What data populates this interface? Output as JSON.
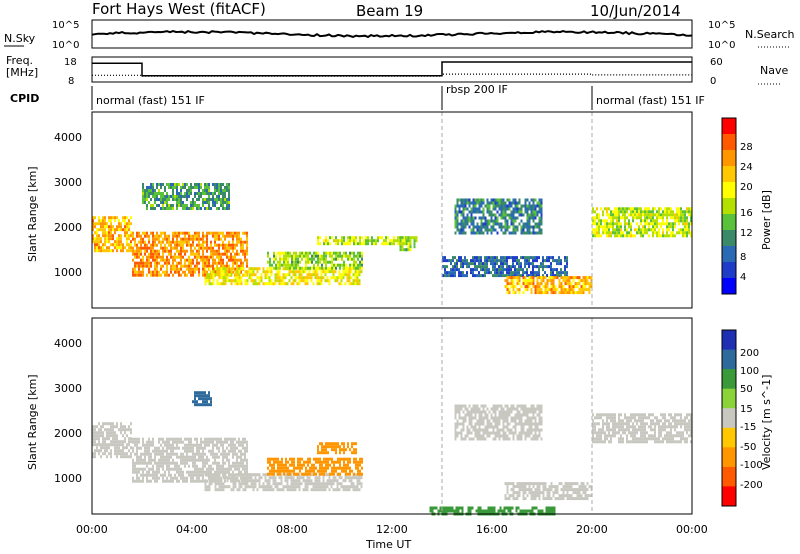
{
  "header": {
    "title": "Fort Hays West (fitACF)",
    "beam": "Beam 19",
    "date": "10/Jun/2014"
  },
  "noise_panel": {
    "left_label": "N.Sky",
    "right_label": "N.Search",
    "left_ticks": [
      "10^5",
      "10^0"
    ],
    "right_ticks": [
      "10^5",
      "10^0"
    ]
  },
  "freq_panel": {
    "left_label_1": "Freq.",
    "left_label_2": "[MHz]",
    "right_label": "Nave",
    "left_ticks": [
      "18",
      "8"
    ],
    "right_ticks": [
      "60",
      "0"
    ],
    "freq_mhz": [
      {
        "from_hour": 0.0,
        "to_hour": 2.0,
        "value": 15.5
      },
      {
        "from_hour": 2.0,
        "to_hour": 14.0,
        "value": 10.5
      },
      {
        "from_hour": 14.0,
        "to_hour": 24.0,
        "value": 16.0
      }
    ],
    "nave": [
      {
        "from_hour": 0.0,
        "to_hour": 2.0,
        "value": 16
      },
      {
        "from_hour": 2.0,
        "to_hour": 14.0,
        "value": 14
      },
      {
        "from_hour": 14.0,
        "to_hour": 20.0,
        "value": 19
      },
      {
        "from_hour": 20.0,
        "to_hour": 24.0,
        "value": 17
      }
    ]
  },
  "cpid": {
    "label": "CPID",
    "segments": [
      {
        "start_hour": 0.0,
        "end_hour": 14.0,
        "text": "normal (fast) 151 IF"
      },
      {
        "start_hour": 14.0,
        "end_hour": 20.0,
        "text": "rbsp 200 IF"
      },
      {
        "start_hour": 20.0,
        "end_hour": 24.0,
        "text": "normal (fast) 151 IF"
      }
    ]
  },
  "axes": {
    "xlabel": "Time UT",
    "x_ticks": [
      "00:00",
      "04:00",
      "08:00",
      "12:00",
      "16:00",
      "20:00",
      "00:00"
    ],
    "ylabel": "Slant Range [km]",
    "y_ticks": [
      "1000",
      "2000",
      "3000",
      "4000"
    ]
  },
  "power_colorbar": {
    "label": "Power [dB]",
    "ticks": [
      "28",
      "24",
      "20",
      "16",
      "12",
      "8",
      "4"
    ],
    "colors": [
      "#ff0000",
      "#ff5a00",
      "#ff9600",
      "#ffc800",
      "#ffff00",
      "#b4e000",
      "#59c13a",
      "#3a8a6a",
      "#2a6ab4",
      "#1f3cc8",
      "#0000ff"
    ]
  },
  "velocity_colorbar": {
    "label": "Velocity [m s^-1]",
    "ticks": [
      "200",
      "100",
      "50",
      "15",
      "-15",
      "-50",
      "-100",
      "-200"
    ],
    "colors": [
      "#1f2fb4",
      "#2e6a9c",
      "#3a9a3a",
      "#8ad43a",
      "#c8c8c0",
      "#ffc800",
      "#ff9600",
      "#ff5a00",
      "#ff0000"
    ]
  },
  "chart_data": {
    "type": "heatmap",
    "title": "Fort Hays West (fitACF)",
    "xlabel": "Time UT",
    "ylabel": "Slant Range [km]",
    "xlim_hours": [
      0,
      24
    ],
    "ylim_km": [
      180,
      4600
    ],
    "program_change_hours": [
      14.0,
      20.0
    ],
    "power_regions": [
      {
        "t0": 0.0,
        "t1": 1.6,
        "r0": 1450,
        "r1": 2250,
        "db": 22
      },
      {
        "t0": 1.6,
        "t1": 6.2,
        "r0": 900,
        "r1": 1900,
        "db": 24
      },
      {
        "t0": 4.5,
        "t1": 10.8,
        "r0": 700,
        "r1": 1100,
        "db": 18
      },
      {
        "t0": 7.0,
        "t1": 10.8,
        "r0": 1100,
        "r1": 1450,
        "db": 14
      },
      {
        "t0": 2.0,
        "t1": 5.5,
        "r0": 2400,
        "r1": 3000,
        "db": 10
      },
      {
        "t0": 9.0,
        "t1": 12.6,
        "r0": 1600,
        "r1": 1800,
        "db": 16
      },
      {
        "t0": 12.3,
        "t1": 13.0,
        "r0": 1500,
        "r1": 1800,
        "db": 14
      },
      {
        "t0": 14.5,
        "t1": 18.0,
        "r0": 1850,
        "r1": 2650,
        "db": 8
      },
      {
        "t0": 14.0,
        "t1": 19.0,
        "r0": 900,
        "r1": 1350,
        "db": 6
      },
      {
        "t0": 16.5,
        "t1": 20.0,
        "r0": 500,
        "r1": 900,
        "db": 22
      },
      {
        "t0": 20.0,
        "t1": 24.0,
        "r0": 1800,
        "r1": 2450,
        "db": 16
      }
    ],
    "velocity_regions": [
      {
        "t0": 0.0,
        "t1": 1.6,
        "r0": 1450,
        "r1": 2250,
        "v": 0
      },
      {
        "t0": 1.6,
        "t1": 6.2,
        "r0": 900,
        "r1": 1900,
        "v": 0
      },
      {
        "t0": 4.5,
        "t1": 10.8,
        "r0": 700,
        "r1": 1100,
        "v": 0
      },
      {
        "t0": 7.0,
        "t1": 10.8,
        "r0": 1100,
        "r1": 1450,
        "v": -60
      },
      {
        "t0": 9.0,
        "t1": 10.6,
        "r0": 1550,
        "r1": 1800,
        "v": -60
      },
      {
        "t0": 4.0,
        "t1": 4.8,
        "r0": 2650,
        "r1": 2950,
        "v": 120
      },
      {
        "t0": 14.5,
        "t1": 18.0,
        "r0": 1850,
        "r1": 2650,
        "v": 0
      },
      {
        "t0": 16.5,
        "t1": 20.0,
        "r0": 500,
        "r1": 900,
        "v": 0
      },
      {
        "t0": 20.0,
        "t1": 24.0,
        "r0": 1800,
        "r1": 2450,
        "v": 0
      },
      {
        "t0": 13.5,
        "t1": 18.5,
        "r0": 200,
        "r1": 350,
        "v": 40
      }
    ]
  }
}
